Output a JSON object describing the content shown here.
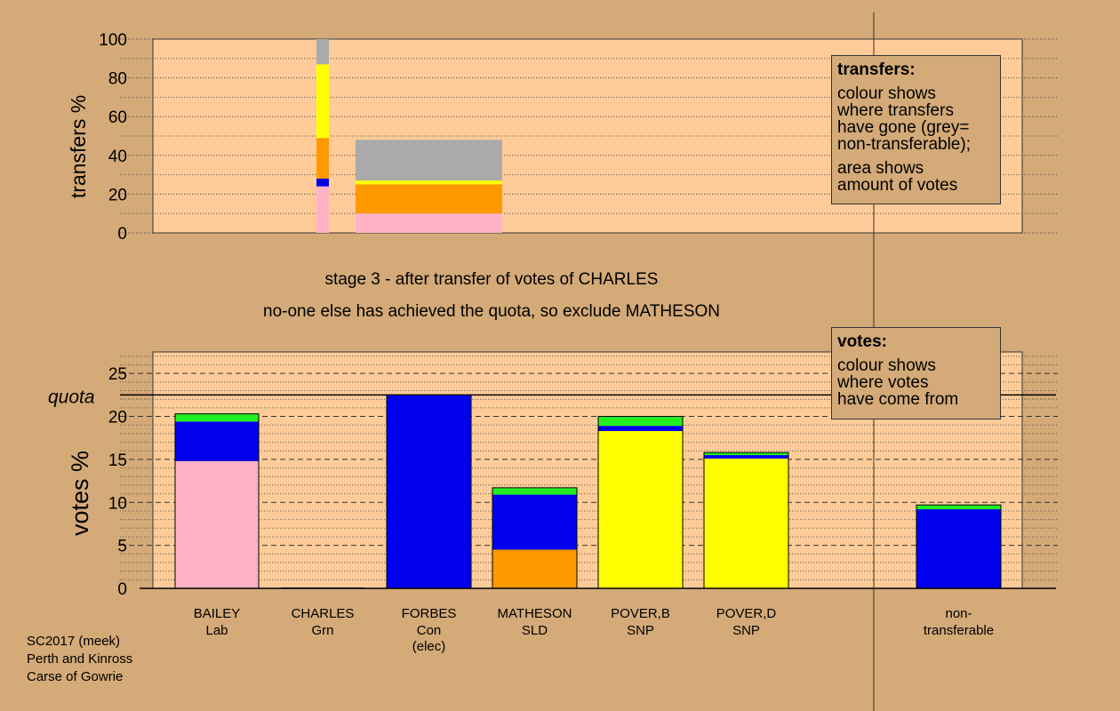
{
  "header": {
    "stage": "stage 3 - after transfer of votes of CHARLES",
    "note": "no-one else has achieved the quota, so exclude MATHESON"
  },
  "colors": {
    "background": "#d4aa78",
    "plot": "#ffcc99",
    "Lab": "#ffb3c6",
    "Grn": "#22ee22",
    "Con": "#0000ee",
    "SLD": "#ff9900",
    "SNP": "#ffff00",
    "nontransferable": "#aaaaaa"
  },
  "transfers_legend": {
    "title": "transfers:",
    "text1": "colour shows\nwhere transfers\nhave gone (grey=\nnon-transferable);",
    "text2": "area shows\namount of votes"
  },
  "votes_legend": {
    "title": "votes:",
    "text1": "colour shows\nwhere votes\nhave come from"
  },
  "footer": {
    "line1": "SC2017 (meek)",
    "line2": "Perth and Kinross",
    "line3": "Carse of Gowrie"
  },
  "chart_data": [
    {
      "id": "transfers",
      "type": "bar",
      "ylabel": "transfers %",
      "ylim": [
        0,
        100
      ],
      "yticks": [
        0,
        20,
        40,
        60,
        80,
        100
      ],
      "bars": [
        {
          "name": "CHARLES",
          "segments": [
            {
              "party": "Lab",
              "from": 0,
              "to": 24
            },
            {
              "party": "Con",
              "from": 24,
              "to": 28
            },
            {
              "party": "SLD",
              "from": 28,
              "to": 49
            },
            {
              "party": "SNP",
              "from": 49,
              "to": 87
            },
            {
              "party": "nontransferable",
              "from": 87,
              "to": 100
            }
          ]
        },
        {
          "name": "MATHESON",
          "segments": [
            {
              "party": "Lab",
              "from": 0,
              "to": 10
            },
            {
              "party": "SLD",
              "from": 10,
              "to": 25
            },
            {
              "party": "SNP",
              "from": 25,
              "to": 27
            },
            {
              "party": "nontransferable",
              "from": 27,
              "to": 48
            }
          ]
        }
      ]
    },
    {
      "id": "votes",
      "type": "bar",
      "ylabel": "votes %",
      "ylim": [
        0,
        27.5
      ],
      "yticks": [
        0,
        5,
        10,
        15,
        20,
        25
      ],
      "quota": 22.5,
      "quota_label": "quota",
      "categories": [
        {
          "name": "BAILEY",
          "party": "Lab",
          "extra": "",
          "segments": [
            {
              "party": "Lab",
              "value": 14.8
            },
            {
              "party": "Con",
              "value": 4.6
            },
            {
              "party": "Grn",
              "value": 0.9
            }
          ]
        },
        {
          "name": "CHARLES",
          "party": "Grn",
          "extra": "",
          "segments": []
        },
        {
          "name": "FORBES",
          "party": "Con",
          "extra": "(elec)",
          "segments": [
            {
              "party": "Con",
              "value": 22.5
            }
          ]
        },
        {
          "name": "MATHESON",
          "party": "SLD",
          "extra": "",
          "segments": [
            {
              "party": "SLD",
              "value": 4.5
            },
            {
              "party": "Con",
              "value": 6.4
            },
            {
              "party": "Grn",
              "value": 0.8
            }
          ]
        },
        {
          "name": "POVER,B",
          "party": "SNP",
          "extra": "",
          "segments": [
            {
              "party": "SNP",
              "value": 18.3
            },
            {
              "party": "Con",
              "value": 0.6
            },
            {
              "party": "Grn",
              "value": 1.1
            }
          ]
        },
        {
          "name": "POVER,D",
          "party": "SNP",
          "extra": "",
          "segments": [
            {
              "party": "SNP",
              "value": 15.1
            },
            {
              "party": "Con",
              "value": 0.4
            },
            {
              "party": "Grn",
              "value": 0.3
            }
          ]
        },
        {
          "name": "non-",
          "party": "transferable",
          "extra": "",
          "segments": [
            {
              "party": "Con",
              "value": 9.2
            },
            {
              "party": "Grn",
              "value": 0.5
            }
          ]
        }
      ]
    }
  ]
}
